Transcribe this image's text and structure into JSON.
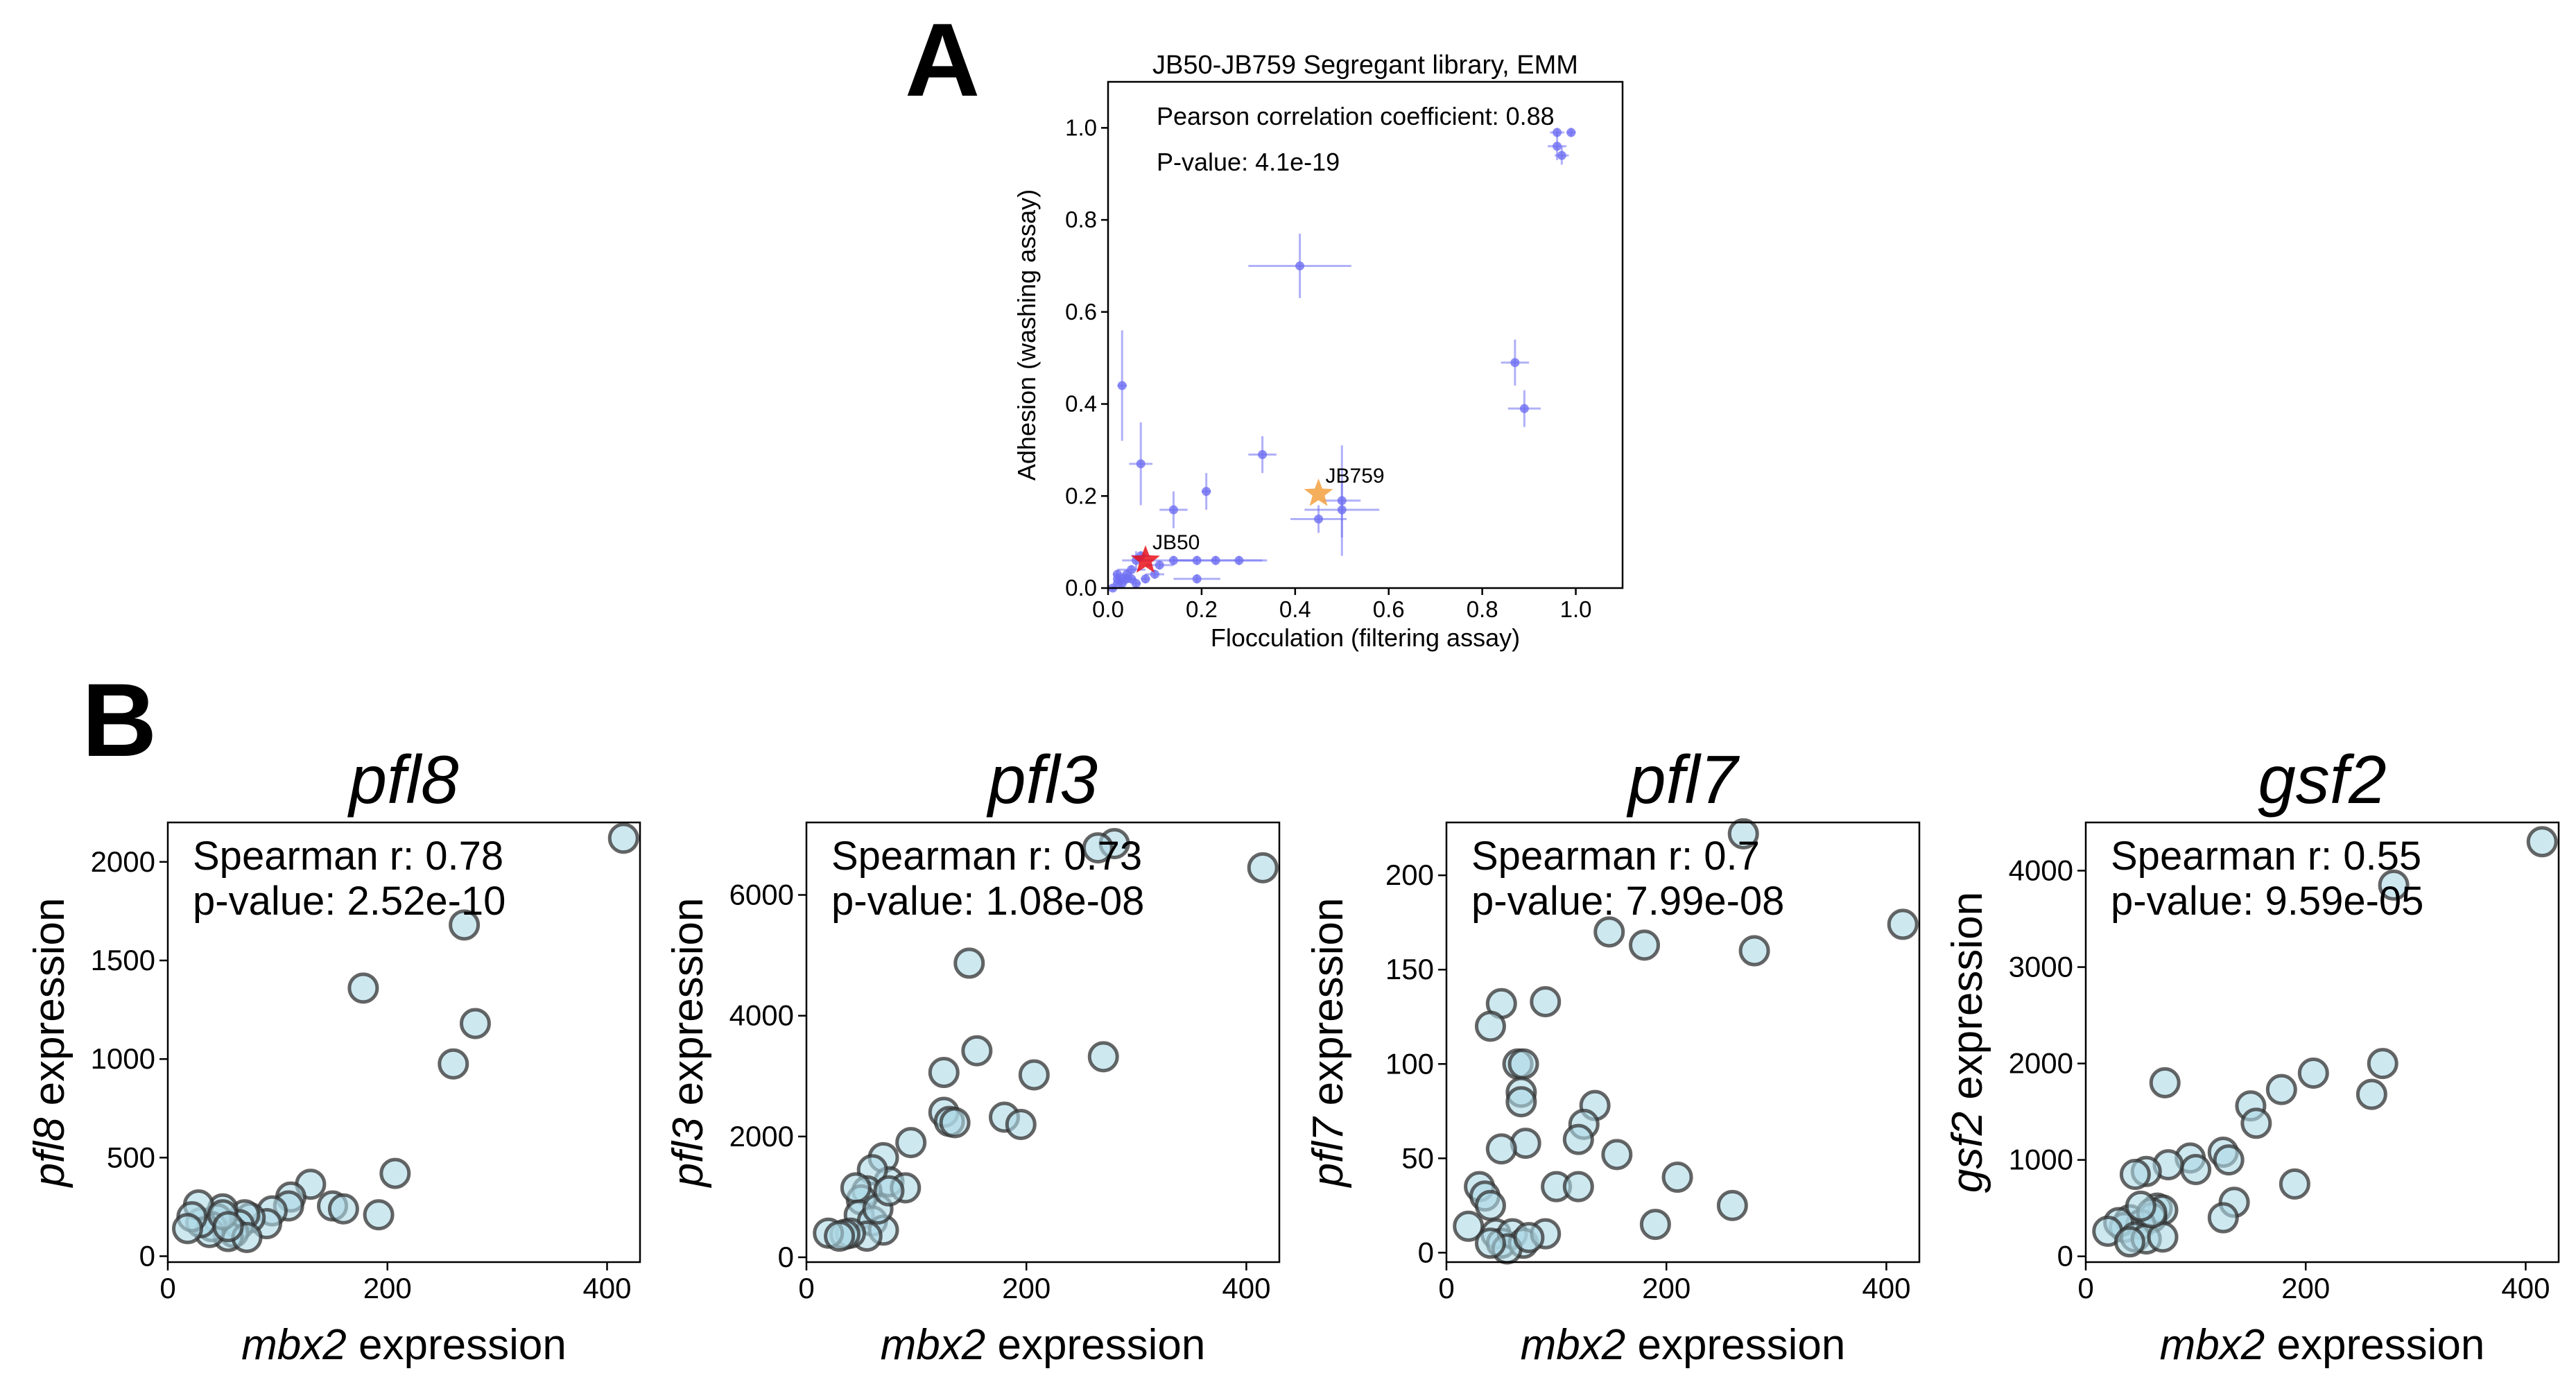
{
  "panel_labels": {
    "a": "A",
    "b": "B"
  },
  "chart_data": [
    {
      "id": "panel-a",
      "type": "scatter",
      "title": "JB50-JB759 Segregant library, EMM",
      "xlabel": "Flocculation (filtering assay)",
      "ylabel": "Adhesion (washing assay)",
      "xlim": [
        0.0,
        1.1
      ],
      "ylim": [
        0.0,
        1.1
      ],
      "xticks": [
        "0.0",
        "0.2",
        "0.4",
        "0.6",
        "0.8",
        "1.0"
      ],
      "yticks": [
        "0.0",
        "0.2",
        "0.4",
        "0.6",
        "0.8",
        "1.0"
      ],
      "annotations": [
        "Pearson correlation coefficient: 0.88",
        "P-value: 4.1e-19"
      ],
      "grid": false,
      "point_color": "#6f6ff2",
      "points": [
        {
          "x": 0.96,
          "y": 0.99,
          "xerr": 0.015,
          "yerr": 0.01
        },
        {
          "x": 0.99,
          "y": 0.99,
          "xerr": 0.01,
          "yerr": 0.01
        },
        {
          "x": 0.96,
          "y": 0.96,
          "xerr": 0.02,
          "yerr": 0.03
        },
        {
          "x": 0.97,
          "y": 0.94,
          "xerr": 0.015,
          "yerr": 0.02
        },
        {
          "x": 0.41,
          "y": 0.7,
          "xerr": 0.11,
          "yerr": 0.07
        },
        {
          "x": 0.87,
          "y": 0.49,
          "xerr": 0.03,
          "yerr": 0.05
        },
        {
          "x": 0.89,
          "y": 0.39,
          "xerr": 0.035,
          "yerr": 0.04
        },
        {
          "x": 0.03,
          "y": 0.44,
          "xerr": 0.01,
          "yerr": 0.12
        },
        {
          "x": 0.07,
          "y": 0.27,
          "xerr": 0.025,
          "yerr": 0.09
        },
        {
          "x": 0.33,
          "y": 0.29,
          "xerr": 0.03,
          "yerr": 0.04
        },
        {
          "x": 0.21,
          "y": 0.21,
          "xerr": 0.01,
          "yerr": 0.04
        },
        {
          "x": 0.14,
          "y": 0.17,
          "xerr": 0.03,
          "yerr": 0.04
        },
        {
          "x": 0.45,
          "y": 0.15,
          "xerr": 0.06,
          "yerr": 0.03
        },
        {
          "x": 0.5,
          "y": 0.17,
          "xerr": 0.08,
          "yerr": 0.06
        },
        {
          "x": 0.5,
          "y": 0.19,
          "xerr": 0.04,
          "yerr": 0.12
        },
        {
          "x": 0.28,
          "y": 0.06,
          "xerr": 0.06,
          "yerr": 0.01
        },
        {
          "x": 0.23,
          "y": 0.06,
          "xerr": 0.1,
          "yerr": 0.01
        },
        {
          "x": 0.19,
          "y": 0.06,
          "xerr": 0.04,
          "yerr": 0.01
        },
        {
          "x": 0.19,
          "y": 0.02,
          "xerr": 0.05,
          "yerr": 0.01
        },
        {
          "x": 0.14,
          "y": 0.06,
          "xerr": 0.05,
          "yerr": 0.01
        },
        {
          "x": 0.11,
          "y": 0.05,
          "xerr": 0.03,
          "yerr": 0.01
        },
        {
          "x": 0.07,
          "y": 0.07,
          "xerr": 0.02,
          "yerr": 0.01
        },
        {
          "x": 0.06,
          "y": 0.06,
          "xerr": 0.03,
          "yerr": 0.02
        },
        {
          "x": 0.05,
          "y": 0.04,
          "xerr": 0.03,
          "yerr": 0.01
        },
        {
          "x": 0.04,
          "y": 0.02,
          "xerr": 0.02,
          "yerr": 0.01
        },
        {
          "x": 0.03,
          "y": 0.01,
          "xerr": 0.01,
          "yerr": 0.01
        },
        {
          "x": 0.02,
          "y": 0.03,
          "xerr": 0.01,
          "yerr": 0.01
        },
        {
          "x": 0.03,
          "y": 0.02,
          "xerr": 0.01,
          "yerr": 0.01
        },
        {
          "x": 0.02,
          "y": 0.01,
          "xerr": 0.005,
          "yerr": 0.005
        },
        {
          "x": 0.04,
          "y": 0.03,
          "xerr": 0.01,
          "yerr": 0.01
        },
        {
          "x": 0.05,
          "y": 0.02,
          "xerr": 0.01,
          "yerr": 0.01
        },
        {
          "x": 0.08,
          "y": 0.02,
          "xerr": 0.01,
          "yerr": 0.01
        },
        {
          "x": 0.1,
          "y": 0.03,
          "xerr": 0.02,
          "yerr": 0.01
        },
        {
          "x": 0.01,
          "y": 0.0,
          "xerr": 0.005,
          "yerr": 0.005
        },
        {
          "x": 0.02,
          "y": 0.02,
          "xerr": 0.005,
          "yerr": 0.005
        },
        {
          "x": 0.06,
          "y": 0.01,
          "xerr": 0.01,
          "yerr": 0.01
        }
      ],
      "highlights": [
        {
          "label": "JB50",
          "x": 0.08,
          "y": 0.06,
          "color": "#e8101a"
        },
        {
          "label": "JB759",
          "x": 0.45,
          "y": 0.205,
          "color": "#f2a040"
        }
      ]
    },
    {
      "id": "pfl8",
      "type": "scatter",
      "title": "pfl8",
      "xlabel_gene": "mbx2",
      "xlabel_rest": " expression",
      "ylabel_gene": "pfl8",
      "ylabel_rest": " expression",
      "xlim": [
        0,
        430
      ],
      "ylim": [
        -30,
        2200
      ],
      "xticks": [
        0,
        200,
        400
      ],
      "yticks": [
        0,
        500,
        1000,
        1500,
        2000
      ],
      "stat_lines": [
        "Spearman r: 0.78",
        "p-value: 2.52e-10"
      ],
      "points": [
        [
          415,
          2120
        ],
        [
          270,
          1680
        ],
        [
          280,
          1180
        ],
        [
          260,
          975
        ],
        [
          178,
          1360
        ],
        [
          207,
          420
        ],
        [
          192,
          210
        ],
        [
          130,
          365
        ],
        [
          112,
          300
        ],
        [
          110,
          255
        ],
        [
          150,
          255
        ],
        [
          160,
          240
        ],
        [
          95,
          230
        ],
        [
          90,
          165
        ],
        [
          75,
          195
        ],
        [
          70,
          210
        ],
        [
          65,
          160
        ],
        [
          60,
          120
        ],
        [
          55,
          100
        ],
        [
          50,
          240
        ],
        [
          45,
          190
        ],
        [
          40,
          150
        ],
        [
          38,
          120
        ],
        [
          30,
          170
        ],
        [
          28,
          260
        ],
        [
          22,
          200
        ],
        [
          18,
          140
        ],
        [
          50,
          210
        ],
        [
          72,
          95
        ],
        [
          55,
          150
        ]
      ]
    },
    {
      "id": "pfl3",
      "type": "scatter",
      "title": "pfl3",
      "xlabel_gene": "mbx2",
      "xlabel_rest": " expression",
      "ylabel_gene": "pfl3",
      "ylabel_rest": " expression",
      "xlim": [
        0,
        430
      ],
      "ylim": [
        -80,
        7200
      ],
      "xticks": [
        0,
        200,
        400
      ],
      "yticks": [
        0,
        2000,
        4000,
        6000
      ],
      "stat_lines": [
        "Spearman r: 0.73",
        "p-value: 1.08e-08"
      ],
      "points": [
        [
          280,
          6850
        ],
        [
          265,
          6780
        ],
        [
          415,
          6450
        ],
        [
          148,
          4870
        ],
        [
          155,
          3420
        ],
        [
          270,
          3320
        ],
        [
          207,
          3020
        ],
        [
          125,
          3060
        ],
        [
          125,
          2400
        ],
        [
          130,
          2250
        ],
        [
          135,
          2230
        ],
        [
          180,
          2320
        ],
        [
          195,
          2200
        ],
        [
          95,
          1900
        ],
        [
          70,
          1650
        ],
        [
          75,
          1250
        ],
        [
          90,
          1150
        ],
        [
          60,
          1450
        ],
        [
          55,
          1100
        ],
        [
          50,
          950
        ],
        [
          45,
          1150
        ],
        [
          48,
          700
        ],
        [
          60,
          600
        ],
        [
          70,
          450
        ],
        [
          55,
          350
        ],
        [
          40,
          400
        ],
        [
          35,
          380
        ],
        [
          20,
          400
        ],
        [
          30,
          350
        ],
        [
          65,
          800
        ],
        [
          75,
          1100
        ]
      ]
    },
    {
      "id": "pfl7",
      "type": "scatter",
      "title": "pfl7",
      "xlabel_gene": "mbx2",
      "xlabel_rest": " expression",
      "ylabel_gene": "pfl7",
      "ylabel_rest": " expression",
      "xlim": [
        0,
        430
      ],
      "ylim": [
        -5,
        228
      ],
      "xticks": [
        0,
        200,
        400
      ],
      "yticks": [
        0,
        50,
        100,
        150,
        200
      ],
      "stat_lines": [
        "Spearman r: 0.7",
        "p-value: 7.99e-08"
      ],
      "points": [
        [
          270,
          222
        ],
        [
          415,
          174
        ],
        [
          148,
          170
        ],
        [
          180,
          163
        ],
        [
          280,
          160
        ],
        [
          50,
          132
        ],
        [
          90,
          133
        ],
        [
          40,
          120
        ],
        [
          65,
          100
        ],
        [
          70,
          100
        ],
        [
          68,
          85
        ],
        [
          68,
          80
        ],
        [
          135,
          78
        ],
        [
          125,
          68
        ],
        [
          120,
          60
        ],
        [
          72,
          58
        ],
        [
          50,
          55
        ],
        [
          155,
          52
        ],
        [
          100,
          35
        ],
        [
          120,
          35
        ],
        [
          210,
          40
        ],
        [
          260,
          25
        ],
        [
          190,
          15
        ],
        [
          30,
          35
        ],
        [
          35,
          30
        ],
        [
          40,
          25
        ],
        [
          20,
          14
        ],
        [
          45,
          10
        ],
        [
          50,
          5
        ],
        [
          60,
          10
        ],
        [
          70,
          5
        ],
        [
          90,
          10
        ],
        [
          55,
          2
        ],
        [
          40,
          5
        ],
        [
          75,
          8
        ]
      ]
    },
    {
      "id": "gsf2",
      "type": "scatter",
      "title": "gsf2",
      "xlabel_gene": "mbx2",
      "xlabel_rest": " expression",
      "ylabel_gene": "gsf2",
      "ylabel_rest": " expression",
      "xlim": [
        0,
        430
      ],
      "ylim": [
        -60,
        4500
      ],
      "xticks": [
        0,
        200,
        400
      ],
      "yticks": [
        0,
        1000,
        2000,
        3000,
        4000
      ],
      "stat_lines": [
        "Spearman r: 0.55",
        "p-value: 9.59e-05"
      ],
      "points": [
        [
          415,
          4300
        ],
        [
          280,
          3850
        ],
        [
          270,
          2000
        ],
        [
          207,
          1900
        ],
        [
          260,
          1680
        ],
        [
          178,
          1730
        ],
        [
          150,
          1560
        ],
        [
          155,
          1380
        ],
        [
          72,
          1800
        ],
        [
          95,
          1020
        ],
        [
          100,
          900
        ],
        [
          125,
          1080
        ],
        [
          130,
          1000
        ],
        [
          190,
          750
        ],
        [
          135,
          560
        ],
        [
          125,
          400
        ],
        [
          75,
          950
        ],
        [
          65,
          500
        ],
        [
          55,
          880
        ],
        [
          45,
          850
        ],
        [
          70,
          480
        ],
        [
          60,
          400
        ],
        [
          40,
          380
        ],
        [
          50,
          330
        ],
        [
          35,
          300
        ],
        [
          30,
          350
        ],
        [
          20,
          260
        ],
        [
          45,
          200
        ],
        [
          55,
          180
        ],
        [
          70,
          200
        ],
        [
          40,
          150
        ],
        [
          60,
          450
        ],
        [
          50,
          520
        ]
      ]
    }
  ]
}
